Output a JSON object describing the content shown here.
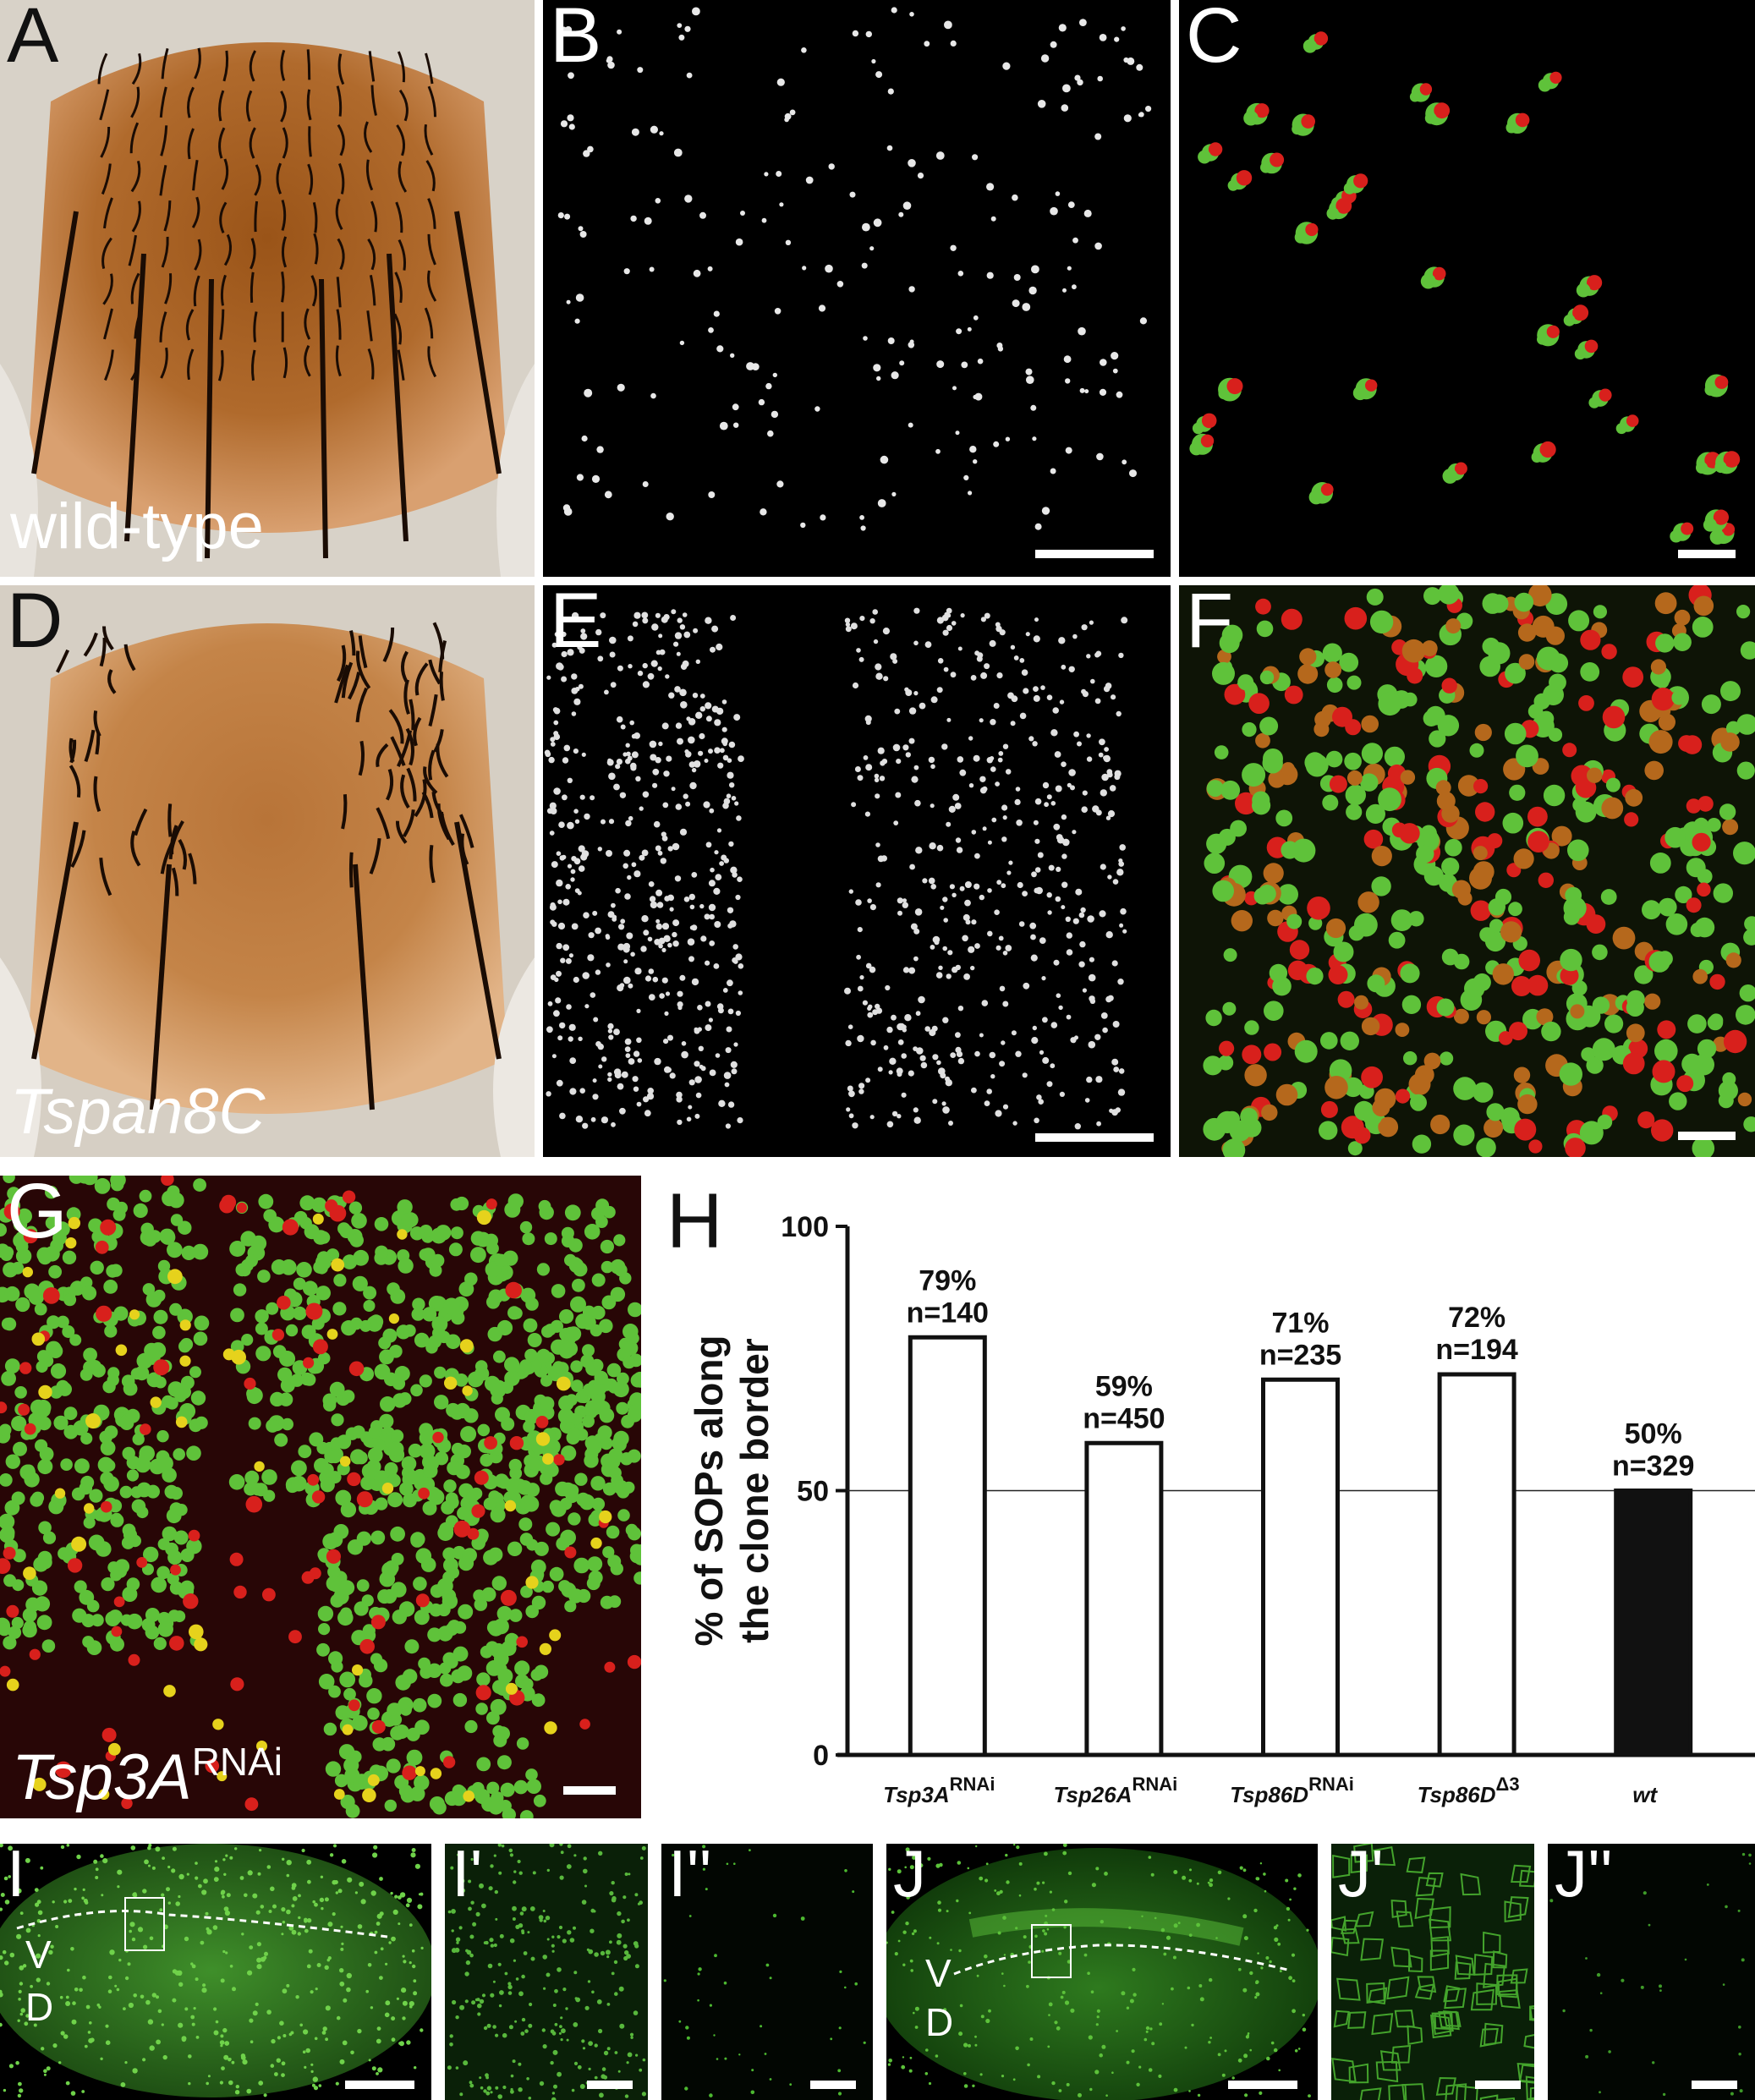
{
  "panels": {
    "A": {
      "label": "A",
      "caption": "wild-type"
    },
    "B": {
      "label": "B"
    },
    "C": {
      "label": "C"
    },
    "D": {
      "label": "D",
      "caption": "Tspan8C"
    },
    "E": {
      "label": "E"
    },
    "F": {
      "label": "F"
    },
    "G": {
      "label": "G",
      "caption_main": "Tsp3A",
      "caption_sup": "RNAi"
    },
    "H": {
      "label": "H"
    },
    "I": {
      "label": "I",
      "v": "V",
      "d": "D"
    },
    "I1": {
      "label": "I'"
    },
    "I2": {
      "label": "I''"
    },
    "J": {
      "label": "J",
      "v": "V",
      "d": "D"
    },
    "J1": {
      "label": "J'"
    },
    "J2": {
      "label": "J''"
    }
  },
  "colors": {
    "cuticle": "#b06a2c",
    "fluor_green": "#5fc23a",
    "fluor_red": "#d8201c",
    "fluor_yellow": "#e6d21c",
    "fluor_dark": "#101a08"
  },
  "chart_data": {
    "type": "bar",
    "ylabel_line1": "% of SOPs along",
    "ylabel_line2": "the clone border",
    "ylim": [
      0,
      100
    ],
    "yticks": [
      0,
      50,
      100
    ],
    "reference_line": 50,
    "grid": false,
    "categories": [
      {
        "main": "Tsp3A",
        "sup": "RNAi"
      },
      {
        "main": "Tsp26A",
        "sup": "RNAi"
      },
      {
        "main": "Tsp86D",
        "sup": "RNAi"
      },
      {
        "main": "Tsp86D",
        "sup": "Δ3"
      },
      {
        "main": "wt",
        "sup": ""
      }
    ],
    "values": [
      79,
      59,
      71,
      72,
      50
    ],
    "pct_labels": [
      "79%",
      "59%",
      "71%",
      "72%",
      "50%"
    ],
    "n_labels": [
      "n=140",
      "n=450",
      "n=235",
      "n=194",
      "n=329"
    ],
    "filled": [
      false,
      false,
      false,
      false,
      true
    ]
  }
}
